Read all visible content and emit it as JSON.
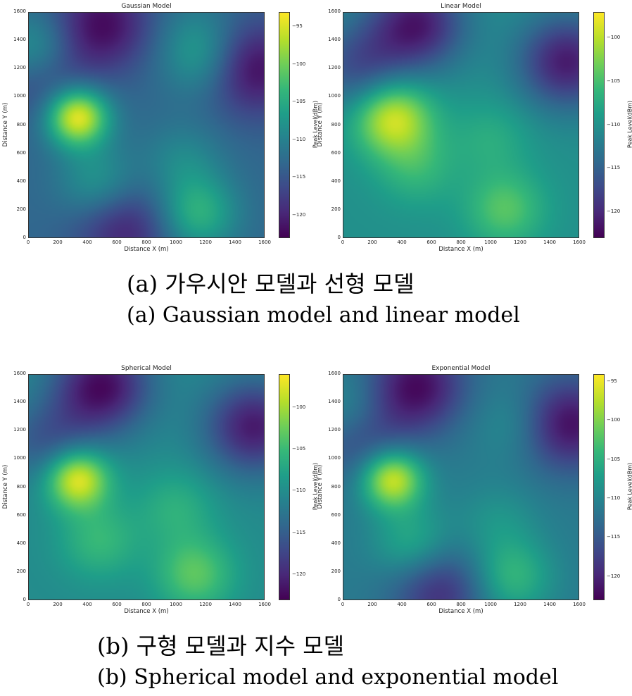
{
  "chart_data": [
    {
      "type": "heatmap",
      "title": "Gaussian Model",
      "xlabel": "Distance X (m)",
      "ylabel": "Distance Y (m)",
      "colorbar_label": "Peak Level(dBm)",
      "xlim": [
        0,
        1600
      ],
      "ylim": [
        0,
        1600
      ],
      "x_ticks": [
        "0",
        "200",
        "400",
        "600",
        "800",
        "1000",
        "1200",
        "1400",
        "1600"
      ],
      "y_ticks": [
        "0",
        "200",
        "400",
        "600",
        "800",
        "1000",
        "1200",
        "1400",
        "1600"
      ],
      "colorbar_ticks": [
        "−95",
        "−100",
        "−105",
        "−110",
        "−115",
        "−120"
      ],
      "colorbar_range": [
        -123,
        -93
      ],
      "colormap": "viridis",
      "baseline": -113,
      "hotspots": [
        {
          "x": 330,
          "y": 860,
          "value": -93
        },
        {
          "x": 470,
          "y": 390,
          "value": -107
        },
        {
          "x": 1150,
          "y": 170,
          "value": -104
        },
        {
          "x": 1050,
          "y": 550,
          "value": -109
        },
        {
          "x": 60,
          "y": 1330,
          "value": -105
        },
        {
          "x": 1180,
          "y": 1250,
          "value": -108
        },
        {
          "x": 1140,
          "y": 1450,
          "value": -110
        }
      ],
      "lowspots": [
        {
          "x": 500,
          "y": 1520,
          "value": -122
        },
        {
          "x": 1530,
          "y": 1200,
          "value": -122
        },
        {
          "x": 650,
          "y": 60,
          "value": -120
        },
        {
          "x": 130,
          "y": 1150,
          "value": -119
        }
      ]
    },
    {
      "type": "heatmap",
      "title": "Linear Model",
      "xlabel": "Distance X (m)",
      "ylabel": "Distance Y (m)",
      "colorbar_label": "Peak Level(dBm)",
      "xlim": [
        0,
        1600
      ],
      "ylim": [
        0,
        1600
      ],
      "x_ticks": [
        "0",
        "200",
        "400",
        "600",
        "800",
        "1000",
        "1200",
        "1400",
        "1600"
      ],
      "y_ticks": [
        "0",
        "200",
        "400",
        "600",
        "800",
        "1000",
        "1200",
        "1400",
        "1600"
      ],
      "colorbar_ticks": [
        "−100",
        "−105",
        "−110",
        "−115",
        "−120"
      ],
      "colorbar_range": [
        -123,
        -97
      ],
      "colormap": "viridis",
      "baseline": -110,
      "hotspots": [
        {
          "x": 330,
          "y": 860,
          "value": -98
        },
        {
          "x": 500,
          "y": 500,
          "value": -106
        },
        {
          "x": 1100,
          "y": 200,
          "value": -104
        },
        {
          "x": 1000,
          "y": 700,
          "value": -107
        }
      ],
      "lowspots": [
        {
          "x": 500,
          "y": 1520,
          "value": -121
        },
        {
          "x": 1520,
          "y": 1250,
          "value": -121
        },
        {
          "x": 120,
          "y": 1200,
          "value": -117
        }
      ]
    },
    {
      "type": "heatmap",
      "title": "Spherical Model",
      "xlabel": "Distance X (m)",
      "ylabel": "Distance Y (m)",
      "colorbar_label": "Peak Level(dBm)",
      "xlim": [
        0,
        1600
      ],
      "ylim": [
        0,
        1600
      ],
      "x_ticks": [
        "0",
        "200",
        "400",
        "600",
        "800",
        "1000",
        "1200",
        "1400",
        "1600"
      ],
      "y_ticks": [
        "0",
        "200",
        "400",
        "600",
        "800",
        "1000",
        "1200",
        "1400",
        "1600"
      ],
      "colorbar_ticks": [
        "−100",
        "−105",
        "−110",
        "−115",
        "−120"
      ],
      "colorbar_range": [
        -123,
        -96
      ],
      "colormap": "viridis",
      "baseline": -110,
      "hotspots": [
        {
          "x": 330,
          "y": 860,
          "value": -96
        },
        {
          "x": 480,
          "y": 420,
          "value": -105
        },
        {
          "x": 1130,
          "y": 180,
          "value": -103
        },
        {
          "x": 1000,
          "y": 650,
          "value": -106
        },
        {
          "x": 60,
          "y": 1330,
          "value": -108
        }
      ],
      "lowspots": [
        {
          "x": 500,
          "y": 1520,
          "value": -122
        },
        {
          "x": 1530,
          "y": 1230,
          "value": -121
        },
        {
          "x": 120,
          "y": 1170,
          "value": -117
        }
      ]
    },
    {
      "type": "heatmap",
      "title": "Exponential Model",
      "xlabel": "Distance X (m)",
      "ylabel": "Distance Y (m)",
      "colorbar_label": "Peak Level(dBm)",
      "xlim": [
        0,
        1600
      ],
      "ylim": [
        0,
        1600
      ],
      "x_ticks": [
        "0",
        "200",
        "400",
        "600",
        "800",
        "1000",
        "1200",
        "1400",
        "1600"
      ],
      "y_ticks": [
        "0",
        "200",
        "400",
        "600",
        "800",
        "1000",
        "1200",
        "1400",
        "1600"
      ],
      "colorbar_ticks": [
        "−95",
        "−100",
        "−105",
        "−110",
        "−115",
        "−120"
      ],
      "colorbar_range": [
        -123,
        -94
      ],
      "colormap": "viridis",
      "baseline": -111,
      "hotspots": [
        {
          "x": 330,
          "y": 860,
          "value": -95
        },
        {
          "x": 470,
          "y": 400,
          "value": -105
        },
        {
          "x": 1150,
          "y": 160,
          "value": -104
        },
        {
          "x": 1050,
          "y": 550,
          "value": -108
        },
        {
          "x": 60,
          "y": 1330,
          "value": -106
        },
        {
          "x": 1180,
          "y": 1250,
          "value": -108
        }
      ],
      "lowspots": [
        {
          "x": 500,
          "y": 1520,
          "value": -122
        },
        {
          "x": 1530,
          "y": 1250,
          "value": -122
        },
        {
          "x": 650,
          "y": 60,
          "value": -119
        },
        {
          "x": 130,
          "y": 1150,
          "value": -118
        }
      ]
    }
  ],
  "captions": {
    "a_korean": "(a) 가우시안 모델과 선형 모델",
    "a_english": "(a) Gaussian model and linear model",
    "b_korean": "(b) 구형 모델과 지수 모델",
    "b_english": "(b) Spherical model and exponential model"
  }
}
